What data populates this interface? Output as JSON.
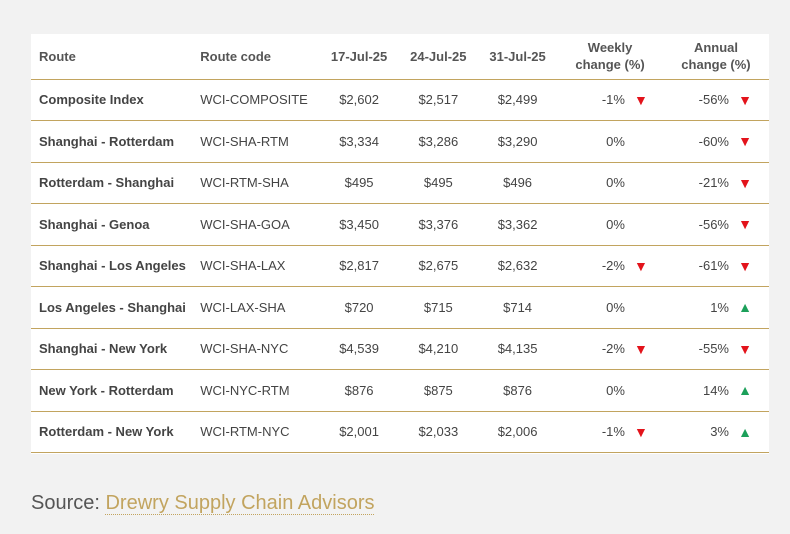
{
  "table": {
    "headers": {
      "route": "Route",
      "route_code": "Route code",
      "date1": "17-Jul-25",
      "date2": "24-Jul-25",
      "date3": "31-Jul-25",
      "weekly_line1": "Weekly",
      "weekly_line2": "change (%)",
      "annual_line1": "Annual",
      "annual_line2": "change (%)"
    },
    "rows": [
      {
        "route": "Composite Index",
        "code": "WCI-COMPOSITE",
        "d1": "$2,602",
        "d2": "$2,517",
        "d3": "$2,499",
        "weekly": "-1%",
        "weekly_dir": "down",
        "annual": "-56%",
        "annual_dir": "down"
      },
      {
        "route": "Shanghai - Rotterdam",
        "code": "WCI-SHA-RTM",
        "d1": "$3,334",
        "d2": "$3,286",
        "d3": "$3,290",
        "weekly": "0%",
        "weekly_dir": "none",
        "annual": "-60%",
        "annual_dir": "down"
      },
      {
        "route": "Rotterdam - Shanghai",
        "code": "WCI-RTM-SHA",
        "d1": "$495",
        "d2": "$495",
        "d3": "$496",
        "weekly": "0%",
        "weekly_dir": "none",
        "annual": "-21%",
        "annual_dir": "down"
      },
      {
        "route": "Shanghai - Genoa",
        "code": "WCI-SHA-GOA",
        "d1": "$3,450",
        "d2": "$3,376",
        "d3": "$3,362",
        "weekly": "0%",
        "weekly_dir": "none",
        "annual": "-56%",
        "annual_dir": "down"
      },
      {
        "route": "Shanghai - Los Angeles",
        "code": "WCI-SHA-LAX",
        "d1": "$2,817",
        "d2": "$2,675",
        "d3": "$2,632",
        "weekly": "-2%",
        "weekly_dir": "down",
        "annual": "-61%",
        "annual_dir": "down"
      },
      {
        "route": "Los Angeles - Shanghai",
        "code": "WCI-LAX-SHA",
        "d1": "$720",
        "d2": "$715",
        "d3": "$714",
        "weekly": "0%",
        "weekly_dir": "none",
        "annual": "1%",
        "annual_dir": "up"
      },
      {
        "route": "Shanghai - New York",
        "code": "WCI-SHA-NYC",
        "d1": "$4,539",
        "d2": "$4,210",
        "d3": "$4,135",
        "weekly": "-2%",
        "weekly_dir": "down",
        "annual": "-55%",
        "annual_dir": "down"
      },
      {
        "route": "New York - Rotterdam",
        "code": "WCI-NYC-RTM",
        "d1": "$876",
        "d2": "$875",
        "d3": "$876",
        "weekly": "0%",
        "weekly_dir": "none",
        "annual": "14%",
        "annual_dir": "up"
      },
      {
        "route": "Rotterdam - New York",
        "code": "WCI-RTM-NYC",
        "d1": "$2,001",
        "d2": "$2,033",
        "d3": "$2,006",
        "weekly": "-1%",
        "weekly_dir": "down",
        "annual": "3%",
        "annual_dir": "up"
      }
    ]
  },
  "source": {
    "prefix": "Source: ",
    "link_text": "Drewry Supply Chain Advisors"
  },
  "colors": {
    "accent_gold": "#c2a45f",
    "down_red": "#e3131b",
    "up_green": "#1ca05a"
  },
  "icons": {
    "down": "triangle-down-icon",
    "up": "triangle-up-icon"
  }
}
